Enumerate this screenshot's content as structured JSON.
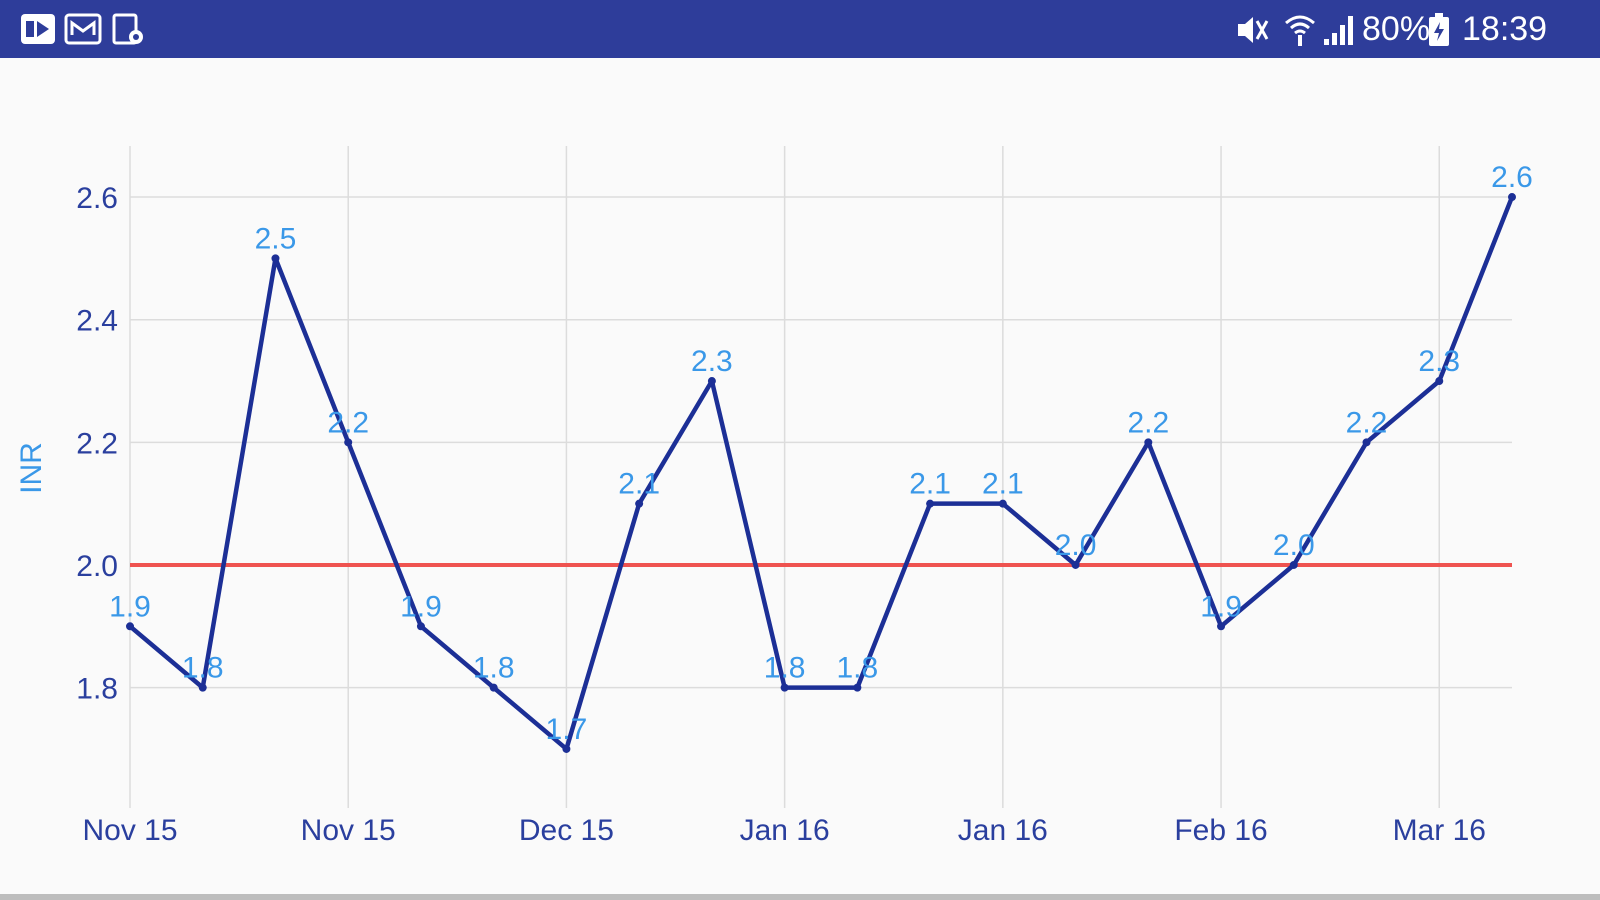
{
  "status_bar": {
    "battery_percent": "80%",
    "time": "18:39",
    "background": "#2e3d9a",
    "left_icons": [
      "media-notification-icon",
      "message-notification-icon",
      "screenshot-notification-icon"
    ],
    "right_icons": [
      "mute-icon",
      "wifi-icon",
      "signal-icon",
      "battery-icon"
    ]
  },
  "chart_data": {
    "type": "line",
    "title": "",
    "xlabel": "",
    "ylabel": "INR",
    "x_tick_labels": [
      "Nov 15",
      "Nov 15",
      "Dec 15",
      "Jan 16",
      "Jan 16",
      "Feb 16",
      "Mar 16"
    ],
    "y_tick_labels": [
      "1.8",
      "2.0",
      "2.2",
      "2.4",
      "2.6"
    ],
    "ylim": [
      1.62,
      2.68
    ],
    "grid": true,
    "series": [
      {
        "values": [
          1.9,
          1.8,
          2.5,
          2.2,
          1.9,
          1.8,
          1.7,
          2.1,
          2.3,
          1.8,
          1.8,
          2.1,
          2.1,
          2.0,
          2.2,
          1.9,
          2.0,
          2.2,
          2.3,
          2.6
        ],
        "labels": [
          "1.9",
          "1.8",
          "2.5",
          "2.2",
          "1.9",
          "1.8",
          "1.7",
          "2.1",
          "2.3",
          "1.8",
          "1.8",
          "2.1",
          "2.1",
          "2.0",
          "2.2",
          "1.9",
          "2.0",
          "2.2",
          "2.3",
          "2.6"
        ],
        "color": "#1c2f96",
        "label_color": "#3a98e8"
      }
    ],
    "reference_line": {
      "value": 2.0,
      "color": "#ef5350"
    },
    "colors": {
      "tick_text": "#2a3f9e",
      "axis_title": "#3a98e8",
      "grid": "#dcdcdc"
    }
  }
}
